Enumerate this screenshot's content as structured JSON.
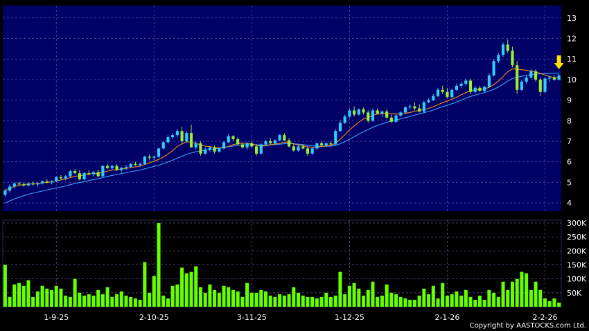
{
  "chart_data": {
    "type": "candlestick",
    "price_panel": {
      "ylim": [
        3.6,
        13.6
      ],
      "y_ticks": [
        "4",
        "5",
        "6",
        "7",
        "8",
        "9",
        "10",
        "11",
        "12",
        "13"
      ],
      "grid": true,
      "marker": "down-arrow-at-latest-bar",
      "candles_ohlc": [
        [
          4.4,
          4.7,
          4.3,
          4.6
        ],
        [
          4.6,
          4.9,
          4.5,
          4.8
        ],
        [
          4.8,
          5.0,
          4.7,
          4.95
        ],
        [
          4.95,
          5.05,
          4.85,
          4.9
        ],
        [
          4.9,
          5.0,
          4.8,
          4.85
        ],
        [
          4.85,
          5.0,
          4.8,
          4.95
        ],
        [
          4.95,
          5.05,
          4.85,
          4.9
        ],
        [
          4.9,
          5.0,
          4.8,
          4.95
        ],
        [
          4.95,
          5.1,
          4.9,
          5.05
        ],
        [
          5.05,
          5.15,
          4.95,
          5.0
        ],
        [
          5.0,
          5.1,
          4.9,
          5.05
        ],
        [
          5.05,
          5.3,
          5.0,
          5.25
        ],
        [
          5.25,
          5.35,
          5.1,
          5.2
        ],
        [
          5.2,
          5.35,
          5.1,
          5.3
        ],
        [
          5.3,
          5.6,
          5.25,
          5.55
        ],
        [
          5.55,
          5.65,
          5.4,
          5.45
        ],
        [
          5.45,
          5.6,
          5.1,
          5.15
        ],
        [
          5.15,
          5.5,
          5.1,
          5.45
        ],
        [
          5.45,
          5.6,
          5.35,
          5.4
        ],
        [
          5.4,
          5.55,
          5.3,
          5.5
        ],
        [
          5.5,
          5.6,
          5.25,
          5.3
        ],
        [
          5.3,
          5.85,
          5.25,
          5.8
        ],
        [
          5.8,
          5.9,
          5.65,
          5.7
        ],
        [
          5.7,
          5.85,
          5.6,
          5.8
        ],
        [
          5.8,
          5.9,
          5.55,
          5.6
        ],
        [
          5.6,
          5.75,
          5.5,
          5.7
        ],
        [
          5.7,
          5.85,
          5.6,
          5.75
        ],
        [
          5.75,
          5.95,
          5.7,
          5.9
        ],
        [
          5.9,
          6.0,
          5.8,
          5.85
        ],
        [
          5.85,
          5.95,
          5.75,
          5.9
        ],
        [
          5.9,
          6.3,
          5.85,
          6.25
        ],
        [
          6.25,
          6.35,
          6.1,
          6.2
        ],
        [
          6.2,
          6.3,
          6.1,
          6.25
        ],
        [
          6.25,
          6.7,
          6.2,
          6.65
        ],
        [
          6.65,
          7.0,
          6.6,
          6.95
        ],
        [
          6.95,
          7.3,
          6.9,
          7.2
        ],
        [
          7.2,
          7.4,
          7.1,
          7.3
        ],
        [
          7.3,
          7.6,
          7.2,
          7.5
        ],
        [
          7.5,
          7.7,
          6.9,
          7.0
        ],
        [
          7.0,
          7.5,
          6.95,
          7.4
        ],
        [
          7.4,
          7.8,
          7.3,
          6.7
        ],
        [
          6.7,
          7.0,
          6.6,
          6.9
        ],
        [
          6.9,
          7.0,
          6.3,
          6.4
        ],
        [
          6.4,
          6.7,
          6.35,
          6.6
        ],
        [
          6.6,
          6.75,
          6.5,
          6.7
        ],
        [
          6.7,
          6.8,
          6.4,
          6.5
        ],
        [
          6.5,
          6.7,
          6.45,
          6.65
        ],
        [
          6.65,
          7.0,
          6.6,
          6.95
        ],
        [
          6.95,
          7.35,
          6.9,
          7.25
        ],
        [
          7.25,
          7.3,
          7.0,
          7.1
        ],
        [
          7.1,
          7.2,
          6.8,
          6.85
        ],
        [
          6.85,
          6.95,
          6.65,
          6.7
        ],
        [
          6.7,
          6.95,
          6.6,
          6.9
        ],
        [
          6.9,
          7.0,
          6.7,
          6.75
        ],
        [
          6.75,
          6.85,
          6.3,
          6.4
        ],
        [
          6.4,
          6.9,
          6.35,
          6.85
        ],
        [
          6.85,
          7.05,
          6.8,
          7.0
        ],
        [
          7.0,
          7.15,
          6.85,
          6.9
        ],
        [
          6.9,
          7.1,
          6.85,
          7.05
        ],
        [
          7.05,
          7.35,
          7.0,
          7.3
        ],
        [
          7.3,
          7.4,
          7.0,
          7.05
        ],
        [
          7.05,
          7.15,
          6.7,
          6.75
        ],
        [
          6.75,
          6.9,
          6.5,
          6.55
        ],
        [
          6.55,
          6.8,
          6.5,
          6.75
        ],
        [
          6.75,
          6.85,
          6.6,
          6.65
        ],
        [
          6.65,
          6.75,
          6.3,
          6.4
        ],
        [
          6.4,
          6.7,
          6.35,
          6.65
        ],
        [
          6.65,
          6.95,
          6.6,
          6.9
        ],
        [
          6.9,
          7.0,
          6.75,
          6.8
        ],
        [
          6.8,
          6.95,
          6.7,
          6.9
        ],
        [
          6.9,
          7.0,
          6.8,
          6.85
        ],
        [
          6.85,
          7.6,
          6.8,
          7.5
        ],
        [
          7.5,
          8.0,
          7.45,
          7.9
        ],
        [
          7.9,
          8.3,
          7.85,
          8.2
        ],
        [
          8.2,
          8.6,
          8.15,
          8.5
        ],
        [
          8.5,
          8.7,
          8.2,
          8.3
        ],
        [
          8.3,
          8.6,
          8.25,
          8.55
        ],
        [
          8.55,
          8.65,
          8.3,
          8.4
        ],
        [
          8.4,
          8.5,
          7.9,
          8.0
        ],
        [
          8.0,
          8.6,
          7.95,
          8.5
        ],
        [
          8.5,
          8.6,
          8.3,
          8.35
        ],
        [
          8.35,
          8.5,
          8.2,
          8.45
        ],
        [
          8.45,
          8.55,
          8.1,
          8.15
        ],
        [
          8.15,
          8.3,
          7.9,
          7.95
        ],
        [
          7.95,
          8.3,
          7.9,
          8.25
        ],
        [
          8.25,
          8.45,
          8.2,
          8.4
        ],
        [
          8.4,
          8.7,
          8.35,
          8.65
        ],
        [
          8.65,
          8.8,
          8.55,
          8.7
        ],
        [
          8.7,
          8.9,
          8.5,
          8.6
        ],
        [
          8.6,
          8.8,
          8.4,
          8.45
        ],
        [
          8.45,
          8.95,
          8.4,
          8.9
        ],
        [
          8.9,
          9.1,
          8.85,
          9.0
        ],
        [
          9.0,
          9.3,
          8.95,
          9.2
        ],
        [
          9.2,
          9.6,
          9.15,
          9.5
        ],
        [
          9.5,
          9.7,
          9.3,
          9.4
        ],
        [
          9.4,
          9.6,
          9.1,
          9.15
        ],
        [
          9.15,
          9.55,
          9.1,
          9.5
        ],
        [
          9.5,
          9.8,
          9.45,
          9.7
        ],
        [
          9.7,
          9.9,
          9.6,
          9.8
        ],
        [
          9.8,
          10.05,
          9.7,
          9.95
        ],
        [
          9.95,
          10.05,
          9.3,
          9.4
        ],
        [
          9.4,
          9.7,
          9.35,
          9.6
        ],
        [
          9.6,
          9.7,
          9.4,
          9.45
        ],
        [
          9.45,
          9.7,
          9.4,
          9.65
        ],
        [
          9.65,
          10.3,
          9.6,
          10.2
        ],
        [
          10.2,
          11.0,
          10.15,
          10.9
        ],
        [
          10.9,
          11.3,
          10.8,
          11.2
        ],
        [
          11.2,
          11.8,
          11.1,
          11.7
        ],
        [
          11.7,
          11.95,
          11.3,
          11.4
        ],
        [
          11.4,
          11.6,
          10.6,
          10.7
        ],
        [
          10.7,
          10.9,
          9.3,
          9.5
        ],
        [
          9.5,
          10.0,
          9.45,
          9.9
        ],
        [
          9.9,
          10.2,
          9.8,
          10.1
        ],
        [
          10.1,
          10.5,
          10.05,
          10.4
        ],
        [
          10.4,
          10.5,
          9.9,
          10.0
        ],
        [
          10.0,
          10.1,
          9.2,
          9.4
        ],
        [
          9.4,
          10.1,
          9.35,
          10.05
        ],
        [
          10.05,
          10.2,
          9.9,
          10.1
        ],
        [
          10.1,
          10.2,
          9.95,
          10.0
        ],
        [
          10.0,
          10.3,
          9.95,
          10.2
        ]
      ],
      "ma_fast": [
        4.6,
        4.7,
        4.8,
        4.85,
        4.9,
        4.92,
        4.93,
        4.95,
        4.98,
        5.0,
        5.03,
        5.08,
        5.12,
        5.17,
        5.24,
        5.3,
        5.32,
        5.36,
        5.4,
        5.43,
        5.44,
        5.5,
        5.55,
        5.6,
        5.62,
        5.65,
        5.68,
        5.72,
        5.75,
        5.8,
        5.87,
        5.95,
        6.03,
        6.12,
        6.23,
        6.38,
        6.55,
        6.75,
        6.87,
        6.98,
        6.95,
        6.9,
        6.83,
        6.76,
        6.74,
        6.7,
        6.68,
        6.69,
        6.75,
        6.84,
        6.88,
        6.9,
        6.9,
        6.88,
        6.8,
        6.77,
        6.78,
        6.83,
        6.87,
        6.9,
        6.95,
        6.96,
        6.88,
        6.82,
        6.78,
        6.73,
        6.71,
        6.72,
        6.74,
        6.78,
        6.8,
        6.9,
        7.1,
        7.32,
        7.55,
        7.75,
        7.93,
        8.08,
        8.16,
        8.27,
        8.32,
        8.34,
        8.35,
        8.34,
        8.32,
        8.33,
        8.36,
        8.4,
        8.46,
        8.5,
        8.55,
        8.6,
        8.68,
        8.78,
        8.88,
        8.96,
        9.05,
        9.14,
        9.26,
        9.37,
        9.45,
        9.5,
        9.52,
        9.55,
        9.62,
        9.75,
        9.92,
        10.15,
        10.38,
        10.52,
        10.5,
        10.48,
        10.45,
        10.42,
        10.38,
        10.3,
        10.22,
        10.15,
        10.1,
        10.08
      ],
      "ma_slow": [
        4.0,
        4.1,
        4.2,
        4.28,
        4.35,
        4.42,
        4.48,
        4.53,
        4.58,
        4.63,
        4.68,
        4.73,
        4.78,
        4.83,
        4.89,
        4.95,
        4.99,
        5.04,
        5.09,
        5.14,
        5.18,
        5.24,
        5.29,
        5.34,
        5.38,
        5.43,
        5.47,
        5.52,
        5.56,
        5.6,
        5.66,
        5.72,
        5.78,
        5.84,
        5.91,
        5.99,
        6.08,
        6.18,
        6.27,
        6.37,
        6.43,
        6.49,
        6.53,
        6.57,
        6.6,
        6.63,
        6.66,
        6.69,
        6.73,
        6.77,
        6.8,
        6.82,
        6.83,
        6.84,
        6.83,
        6.82,
        6.82,
        6.83,
        6.84,
        6.86,
        6.88,
        6.89,
        6.88,
        6.86,
        6.84,
        6.81,
        6.78,
        6.76,
        6.75,
        6.76,
        6.76,
        6.8,
        6.88,
        6.98,
        7.1,
        7.22,
        7.35,
        7.47,
        7.57,
        7.68,
        7.77,
        7.85,
        7.92,
        7.98,
        8.04,
        8.09,
        8.15,
        8.21,
        8.27,
        8.33,
        8.39,
        8.45,
        8.52,
        8.6,
        8.68,
        8.75,
        8.83,
        8.91,
        9.0,
        9.1,
        9.18,
        9.25,
        9.31,
        9.37,
        9.44,
        9.53,
        9.64,
        9.78,
        9.93,
        10.05,
        10.11,
        10.16,
        10.2,
        10.24,
        10.27,
        10.28,
        10.29,
        10.3,
        10.31,
        10.32
      ]
    },
    "volume_panel": {
      "ylim": [
        0,
        310000
      ],
      "y_ticks": [
        {
          "label": "50K",
          "value": 50000
        },
        {
          "label": "100K",
          "value": 100000
        },
        {
          "label": "150K",
          "value": 150000
        },
        {
          "label": "200K",
          "value": 200000
        },
        {
          "label": "250K",
          "value": 250000
        },
        {
          "label": "300K",
          "value": 300000
        }
      ],
      "values": [
        150000,
        35000,
        80000,
        85000,
        75000,
        95000,
        35000,
        55000,
        75000,
        65000,
        60000,
        75000,
        65000,
        40000,
        35000,
        100000,
        50000,
        40000,
        45000,
        40000,
        60000,
        45000,
        70000,
        35000,
        45000,
        55000,
        40000,
        35000,
        30000,
        25000,
        160000,
        50000,
        110000,
        300000,
        40000,
        30000,
        75000,
        80000,
        140000,
        120000,
        125000,
        145000,
        70000,
        50000,
        80000,
        60000,
        50000,
        75000,
        70000,
        60000,
        55000,
        35000,
        85000,
        50000,
        50000,
        60000,
        55000,
        40000,
        35000,
        45000,
        40000,
        45000,
        70000,
        50000,
        40000,
        35000,
        35000,
        30000,
        35000,
        50000,
        35000,
        40000,
        125000,
        45000,
        75000,
        85000,
        65000,
        40000,
        60000,
        90000,
        35000,
        40000,
        80000,
        50000,
        45000,
        35000,
        30000,
        25000,
        25000,
        40000,
        65000,
        45000,
        75000,
        30000,
        85000,
        40000,
        45000,
        55000,
        40000,
        60000,
        35000,
        25000,
        40000,
        25000,
        60000,
        50000,
        35000,
        90000,
        60000,
        90000,
        100000,
        125000,
        120000,
        60000,
        90000,
        60000,
        30000,
        20000,
        30000,
        15000
      ]
    },
    "x_ticks": [
      {
        "label": "1-9-25",
        "index": 11
      },
      {
        "label": "2-10-25",
        "index": 32
      },
      {
        "label": "3-11-25",
        "index": 53
      },
      {
        "label": "1-12-25",
        "index": 74
      },
      {
        "label": "2-1-26",
        "index": 95
      },
      {
        "label": "2-2-26",
        "index": 116
      }
    ],
    "copyright": "Copyright by AASTOCKS.com Ltd."
  },
  "colors": {
    "background": "#000000",
    "price_panel_bg": "#000066",
    "volume_panel_bg": "#000000",
    "grid": "#5a5aa0",
    "up_candle": "#33ccff",
    "down_candle": "#99ee33",
    "ma_fast": "#ff8c1a",
    "ma_slow": "#3fa0ff",
    "volume_bar": "#66ff00",
    "marker": "#ffdd00",
    "text": "#ffffff"
  }
}
